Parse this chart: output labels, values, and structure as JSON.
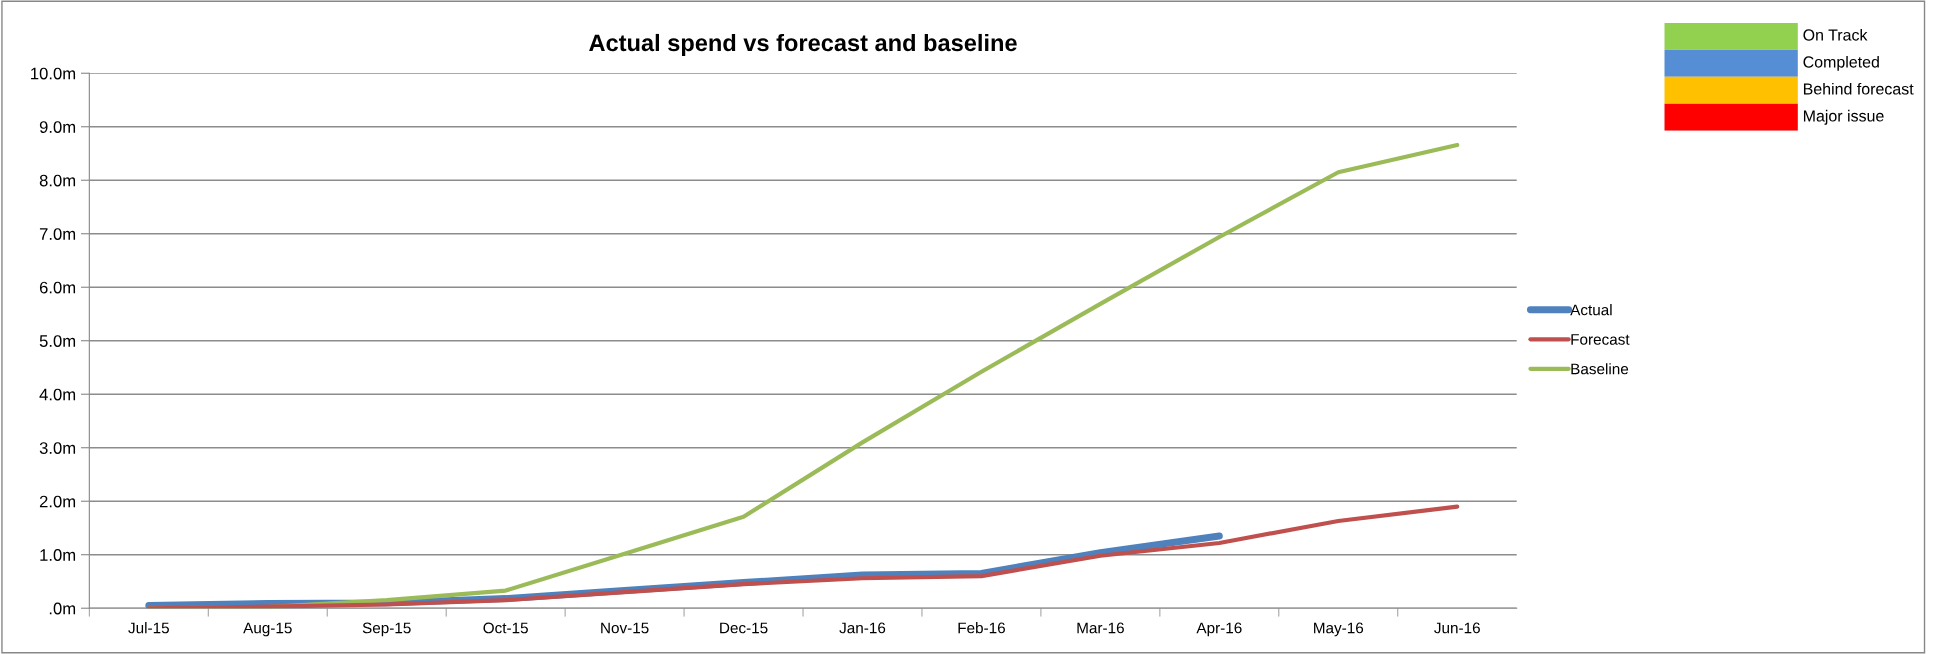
{
  "chart_data": [
    {
      "type": "line",
      "title": "Actual spend vs forecast and baseline",
      "categories": [
        "Jul-15",
        "Aug-15",
        "Sep-15",
        "Oct-15",
        "Nov-15",
        "Dec-15",
        "Jan-16",
        "Feb-16",
        "Mar-16",
        "Apr-16",
        "May-16",
        "Jun-16"
      ],
      "series": [
        {
          "name": "Actual",
          "color": "#4f81bd",
          "values": [
            0.05,
            0.09,
            0.1,
            0.18,
            0.33,
            0.48,
            0.62,
            0.65,
            1.04,
            1.35,
            null,
            null
          ]
        },
        {
          "name": "Forecast",
          "color": "#c0504d",
          "values": [
            0.0,
            0.03,
            0.07,
            0.15,
            0.3,
            0.45,
            0.56,
            0.6,
            0.98,
            1.22,
            1.63,
            1.9
          ]
        },
        {
          "name": "Baseline",
          "color": "#9bbb59",
          "values": [
            0.0,
            0.02,
            0.15,
            0.33,
            1.02,
            1.71,
            3.1,
            4.42,
            5.69,
            6.94,
            8.15,
            8.66
          ]
        }
      ],
      "ylim": [
        0,
        10
      ],
      "yticks": [
        {
          "value": 0,
          "label": ".0m"
        },
        {
          "value": 1,
          "label": "1.0m"
        },
        {
          "value": 2,
          "label": "2.0m"
        },
        {
          "value": 3,
          "label": "3.0m"
        },
        {
          "value": 4,
          "label": "4.0m"
        },
        {
          "value": 5,
          "label": "5.0m"
        },
        {
          "value": 6,
          "label": "6.0m"
        },
        {
          "value": 7,
          "label": "7.0m"
        },
        {
          "value": 8,
          "label": "8.0m"
        },
        {
          "value": 9,
          "label": "9.0m"
        },
        {
          "value": 10,
          "label": "10.0m"
        }
      ],
      "grid": "y",
      "legend": "right",
      "marker": "none",
      "line_style": "solid"
    },
    {
      "type": "other",
      "categories": [
        "On Track",
        "Completed",
        "Behind forecast",
        "Major issue"
      ],
      "colors": [
        "#92d050",
        "#558ed5",
        "#ffc000",
        "#ff0000"
      ]
    }
  ]
}
